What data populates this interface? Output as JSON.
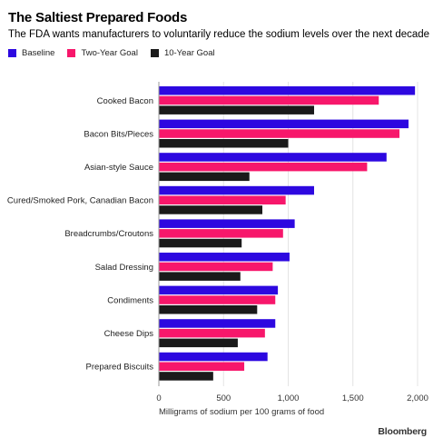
{
  "chart_data": {
    "type": "bar",
    "orientation": "horizontal",
    "title": "The Saltiest Prepared Foods",
    "subtitle": "The FDA wants manufacturers to voluntarily reduce the sodium levels over the next decade",
    "xlabel": "Milligrams of sodium per 100 grams of food",
    "ylabel": "",
    "xlim": [
      0,
      2000
    ],
    "xticks": [
      0,
      500,
      1000,
      1500,
      2000
    ],
    "xtick_labels": [
      "0",
      "500",
      "1,000",
      "1,500",
      "2,000"
    ],
    "categories": [
      "Cooked Bacon",
      "Bacon Bits/Pieces",
      "Asian-style Sauce",
      "Cured/Smoked Pork, Canadian Bacon",
      "Breadcrumbs/Croutons",
      "Salad Dressing",
      "Condiments",
      "Cheese Dips",
      "Prepared Biscuits"
    ],
    "series": [
      {
        "name": "Baseline",
        "color": "#2d08e0",
        "values": [
          1980,
          1930,
          1760,
          1200,
          1050,
          1010,
          920,
          900,
          840
        ]
      },
      {
        "name": "Two-Year Goal",
        "color": "#f7176b",
        "values": [
          1700,
          1860,
          1610,
          980,
          960,
          880,
          900,
          820,
          660
        ]
      },
      {
        "name": "10-Year Goal",
        "color": "#1a1a1a",
        "values": [
          1200,
          1000,
          700,
          800,
          640,
          630,
          760,
          610,
          420
        ]
      }
    ],
    "grid": true,
    "legend_position": "top-left"
  },
  "source": "Bloomberg"
}
